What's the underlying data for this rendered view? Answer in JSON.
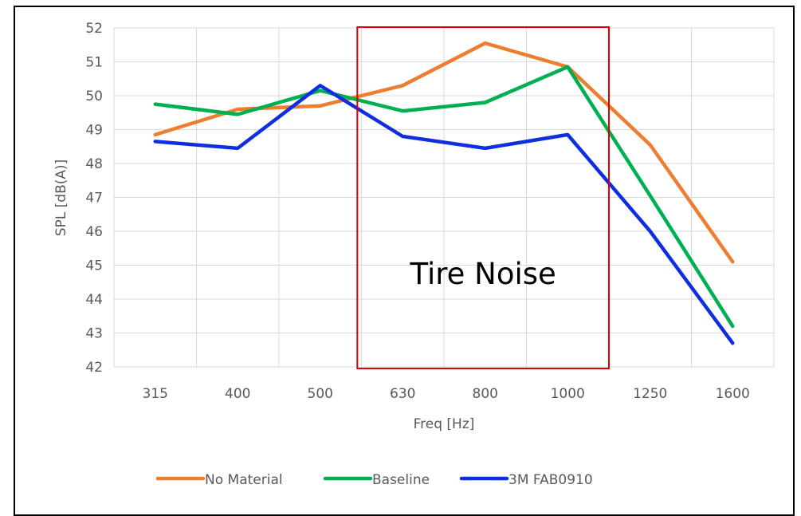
{
  "chart_data": {
    "type": "line",
    "title": "",
    "xlabel": "Freq [Hz]",
    "ylabel": "SPL [dB(A)]",
    "categories": [
      "315",
      "400",
      "500",
      "630",
      "800",
      "1000",
      "1250",
      "1600"
    ],
    "ylim": [
      42,
      52
    ],
    "yticks": [
      42,
      43,
      44,
      45,
      46,
      47,
      48,
      49,
      50,
      51,
      52
    ],
    "grid": true,
    "legend_position": "bottom",
    "series": [
      {
        "name": "No Material",
        "color": "#ED7D31",
        "values": [
          48.85,
          49.6,
          49.7,
          50.3,
          51.55,
          50.85,
          48.55,
          45.1
        ]
      },
      {
        "name": "Baseline",
        "color": "#00B050",
        "values": [
          49.75,
          49.45,
          50.15,
          49.55,
          49.8,
          50.85,
          47.05,
          43.2
        ]
      },
      {
        "name": "3M FAB0910",
        "color": "#0F2EE0",
        "values": [
          48.65,
          48.45,
          50.3,
          48.8,
          48.45,
          48.85,
          46.0,
          42.7
        ]
      }
    ],
    "annotations": [
      {
        "text": "Tire Noise",
        "x_from": "630",
        "x_to": "1000",
        "box_color": "#E00000"
      }
    ]
  }
}
